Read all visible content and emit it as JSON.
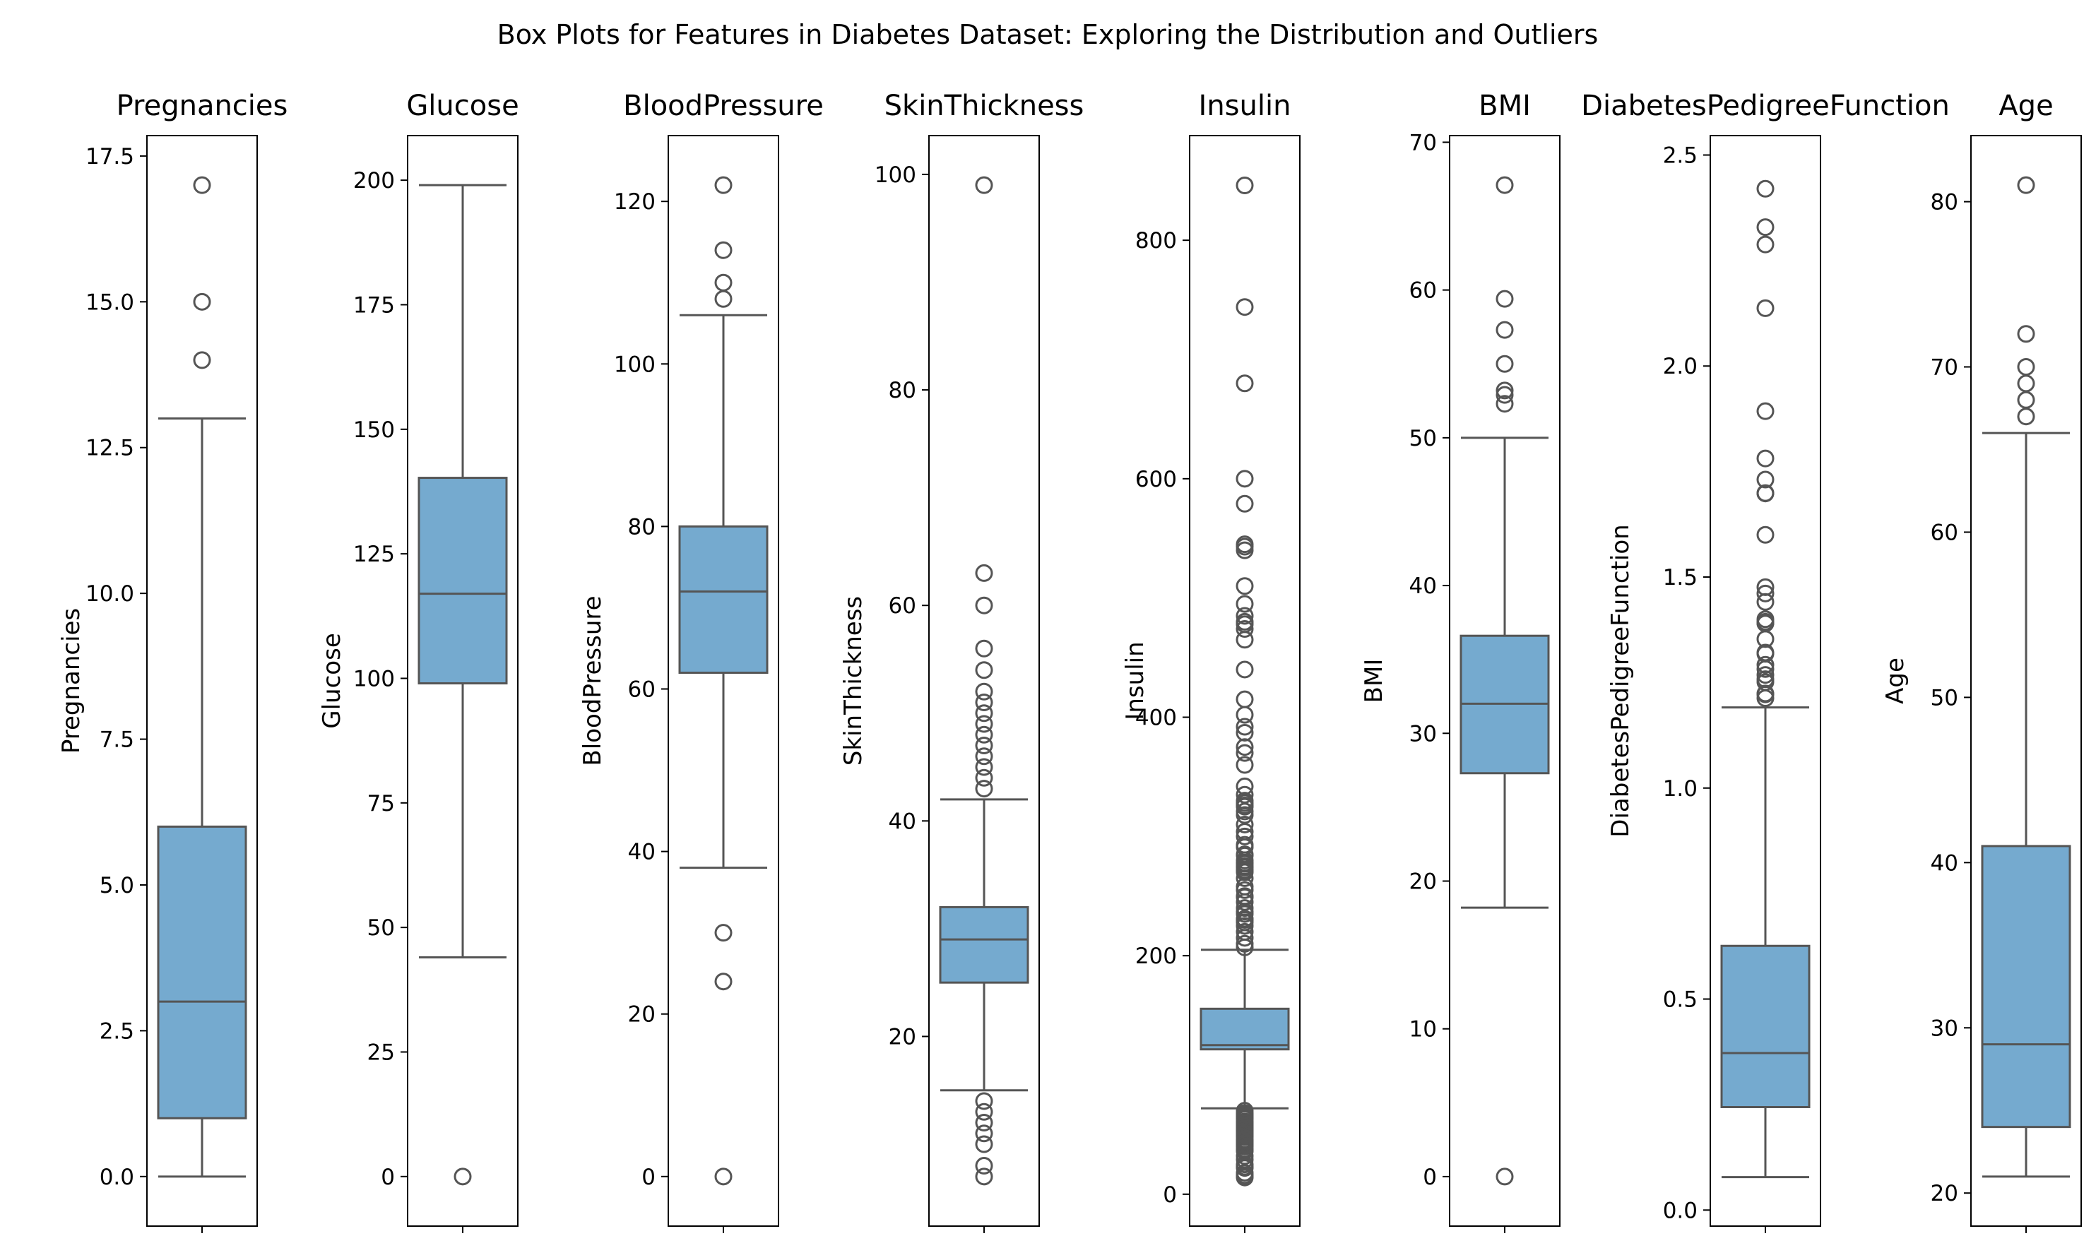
{
  "chart_data": {
    "type": "box",
    "title": "Box Plots for Features in Diabetes Dataset: Exploring the Distribution and Outliers",
    "colors": {
      "box_fill": "#75aacf",
      "line": "#555555",
      "axis": "#000000"
    },
    "panels": [
      {
        "name": "Pregnancies",
        "title": "Pregnancies",
        "ylabel": "Pregnancies",
        "ylim": [
          -0.85,
          17.85
        ],
        "ticks": [
          0.0,
          2.5,
          5.0,
          7.5,
          10.0,
          12.5,
          15.0,
          17.5
        ],
        "tick_labels": [
          "0.0",
          "2.5",
          "5.0",
          "7.5",
          "10.0",
          "12.5",
          "15.0",
          "17.5"
        ],
        "whisker_low": 0,
        "q1": 1,
        "median": 3,
        "q3": 6,
        "whisker_high": 13,
        "outliers": [
          14,
          15,
          17
        ]
      },
      {
        "name": "Glucose",
        "title": "Glucose",
        "ylabel": "Glucose",
        "ylim": [
          -9.95,
          208.95
        ],
        "ticks": [
          0,
          25,
          50,
          75,
          100,
          125,
          150,
          175,
          200
        ],
        "tick_labels": [
          "0",
          "25",
          "50",
          "75",
          "100",
          "125",
          "150",
          "175",
          "200"
        ],
        "whisker_low": 44,
        "q1": 99,
        "median": 117,
        "q3": 140.25,
        "whisker_high": 199,
        "outliers": [
          0
        ]
      },
      {
        "name": "BloodPressure",
        "title": "BloodPressure",
        "ylabel": "BloodPressure",
        "ylim": [
          -6.1,
          128.1
        ],
        "ticks": [
          0,
          20,
          40,
          60,
          80,
          100,
          120
        ],
        "tick_labels": [
          "0",
          "20",
          "40",
          "60",
          "80",
          "100",
          "120"
        ],
        "whisker_low": 38,
        "q1": 62,
        "median": 72,
        "q3": 80,
        "whisker_high": 106,
        "outliers": [
          0,
          24,
          30,
          108,
          110,
          114,
          122
        ]
      },
      {
        "name": "SkinThickness",
        "title": "SkinThickness",
        "ylabel": "SkinThickness",
        "ylim": [
          2.4,
          103.6
        ],
        "ticks": [
          20,
          40,
          60,
          80,
          100
        ],
        "tick_labels": [
          "20",
          "40",
          "60",
          "80",
          "100"
        ],
        "whisker_low": 15,
        "q1": 25,
        "median": 29,
        "q3": 32,
        "whisker_high": 42,
        "outliers": [
          7,
          8,
          10,
          11,
          12,
          13,
          14,
          43,
          44,
          45,
          46,
          47,
          48,
          49,
          50,
          51,
          52,
          54,
          56,
          60,
          63,
          99
        ]
      },
      {
        "name": "Insulin",
        "title": "Insulin",
        "ylabel": "Insulin",
        "ylim": [
          -26.75,
          887.75
        ],
        "ticks": [
          0,
          200,
          400,
          600,
          800
        ],
        "tick_labels": [
          "0",
          "200",
          "400",
          "600",
          "800"
        ],
        "whisker_low": 72,
        "q1": 121.5,
        "median": 125,
        "q3": 155.5,
        "whisker_high": 205,
        "outliers": [
          14,
          15,
          16,
          18,
          22,
          23,
          25,
          29,
          32,
          36,
          37,
          38,
          40,
          41,
          42,
          43,
          44,
          45,
          46,
          48,
          49,
          50,
          51,
          52,
          53,
          54,
          55,
          56,
          57,
          58,
          59,
          60,
          61,
          63,
          64,
          65,
          66,
          67,
          68,
          70,
          207,
          210,
          215,
          220,
          225,
          228,
          230,
          231,
          235,
          237,
          240,
          245,
          249,
          250,
          255,
          258,
          265,
          270,
          271,
          272,
          274,
          275,
          277,
          278,
          280,
          284,
          285,
          291,
          293,
          300,
          304,
          310,
          318,
          321,
          325,
          326,
          328,
          330,
          335,
          342,
          360,
          370,
          375,
          387,
          392,
          402,
          415,
          440,
          465,
          474,
          478,
          480,
          485,
          495,
          510,
          540,
          543,
          545,
          579,
          600,
          680,
          744,
          846
        ]
      },
      {
        "name": "BMI",
        "title": "BMI",
        "ylabel": "BMI",
        "ylim": [
          -3.35,
          70.45
        ],
        "ticks": [
          0,
          10,
          20,
          30,
          40,
          50,
          60,
          70
        ],
        "tick_labels": [
          "0",
          "10",
          "20",
          "30",
          "40",
          "50",
          "60",
          "70"
        ],
        "whisker_low": 18.2,
        "q1": 27.3,
        "median": 32.0,
        "q3": 36.6,
        "whisker_high": 50.0,
        "outliers": [
          0,
          52.3,
          52.9,
          53.2,
          55.0,
          57.3,
          59.4,
          67.1
        ]
      },
      {
        "name": "DiabetesPedigreeFunction",
        "title": "DiabetesPedigreeFunction",
        "ylabel": "DiabetesPedigreeFunction",
        "ylim": [
          -0.038,
          2.546
        ],
        "ticks": [
          0.0,
          0.5,
          1.0,
          1.5,
          2.0,
          2.5
        ],
        "tick_labels": [
          "0.0",
          "0.5",
          "1.0",
          "1.5",
          "2.0",
          "2.5"
        ],
        "whisker_low": 0.078,
        "q1": 0.244,
        "median": 0.372,
        "q3": 0.626,
        "whisker_high": 1.191,
        "outliers": [
          1.213,
          1.222,
          1.224,
          1.251,
          1.258,
          1.268,
          1.282,
          1.292,
          1.318,
          1.321,
          1.353,
          1.39,
          1.391,
          1.394,
          1.4,
          1.441,
          1.461,
          1.476,
          1.6,
          1.698,
          1.699,
          1.731,
          1.781,
          1.893,
          2.137,
          2.288,
          2.329,
          2.42
        ]
      },
      {
        "name": "Age",
        "title": "Age",
        "ylabel": "Age",
        "ylim": [
          18.0,
          84.0
        ],
        "ticks": [
          20,
          30,
          40,
          50,
          60,
          70,
          80
        ],
        "tick_labels": [
          "20",
          "30",
          "40",
          "50",
          "60",
          "70",
          "80"
        ],
        "whisker_low": 21,
        "q1": 24,
        "median": 29,
        "q3": 41,
        "whisker_high": 66,
        "outliers": [
          67,
          68,
          69,
          70,
          72,
          81
        ]
      }
    ]
  }
}
